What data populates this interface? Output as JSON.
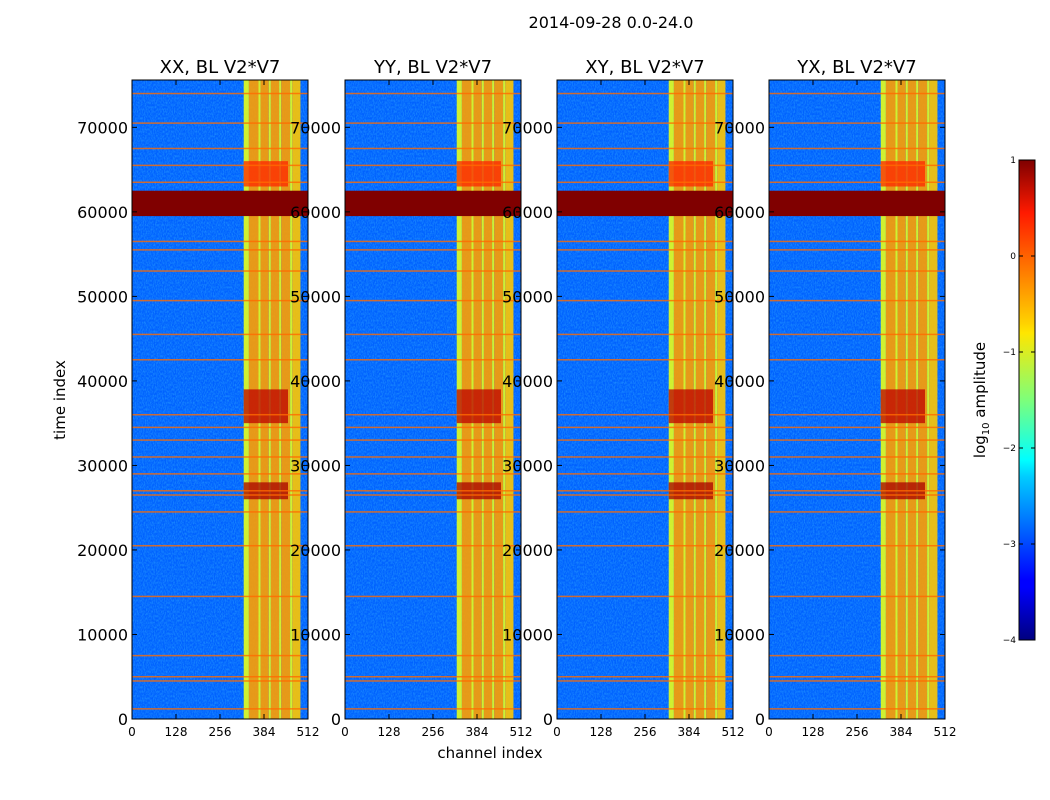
{
  "chart_data": {
    "type": "heatmap",
    "title": "2014-09-28 0.0-24.0",
    "xlabel": "channel index",
    "ylabel": "time index",
    "xlim": [
      0,
      512
    ],
    "ylim": [
      0,
      75600
    ],
    "xticks": [
      0,
      128,
      256,
      384,
      512
    ],
    "yticks": [
      0,
      10000,
      20000,
      30000,
      40000,
      50000,
      60000,
      70000
    ],
    "xtick_labels": [
      "0",
      "128",
      "256",
      "384",
      "512"
    ],
    "ytick_labels": [
      "0",
      "10000",
      "20000",
      "30000",
      "40000",
      "50000",
      "60000",
      "70000"
    ],
    "panels": [
      {
        "title": "XX, BL V2*V7",
        "pol": "XX"
      },
      {
        "title": "YY, BL V2*V7",
        "pol": "YY"
      },
      {
        "title": "XY, BL V2*V7",
        "pol": "XY"
      },
      {
        "title": "YX, BL V2*V7",
        "pol": "YX"
      }
    ],
    "background_log_amplitude": -2.9,
    "band_channels": [
      325,
      512
    ],
    "band_stripes": [
      {
        "from": 325,
        "to": 340,
        "value": -1.0
      },
      {
        "from": 340,
        "to": 368,
        "value": -0.4
      },
      {
        "from": 368,
        "to": 374,
        "value": -1.0
      },
      {
        "from": 374,
        "to": 398,
        "value": -0.4
      },
      {
        "from": 398,
        "to": 404,
        "value": -1.0
      },
      {
        "from": 404,
        "to": 428,
        "value": -0.4
      },
      {
        "from": 428,
        "to": 434,
        "value": -1.0
      },
      {
        "from": 434,
        "to": 460,
        "value": -0.4
      },
      {
        "from": 460,
        "to": 466,
        "value": -1.0
      },
      {
        "from": 466,
        "to": 490,
        "value": -0.6
      }
    ],
    "saturated_block": {
      "t_from": 59500,
      "t_to": 62500,
      "value": 1.0
    },
    "flag_lines_time": [
      1200,
      4500,
      5000,
      7500,
      14500,
      20500,
      24500,
      26500,
      27000,
      29000,
      31000,
      33000,
      34500,
      36000,
      42500,
      45500,
      49500,
      53000,
      55500,
      56500,
      63500,
      65500,
      67500,
      70500,
      74000
    ],
    "hot_intervals": [
      {
        "from": 26000,
        "to": 28000,
        "value": 0.8
      },
      {
        "from": 35000,
        "to": 39000,
        "value": 0.7
      },
      {
        "from": 63000,
        "to": 66000,
        "value": 0.2
      }
    ],
    "colorbar": {
      "label_prefix": "log",
      "label_sub": "10",
      "label_suffix": " amplitude",
      "range": [
        -4,
        1
      ],
      "ticks": [
        1,
        0,
        -1,
        -2,
        -3,
        -4
      ],
      "tick_labels": [
        "1",
        "0",
        "−1",
        "−2",
        "−3",
        "−4"
      ],
      "colormap": "jet"
    }
  }
}
